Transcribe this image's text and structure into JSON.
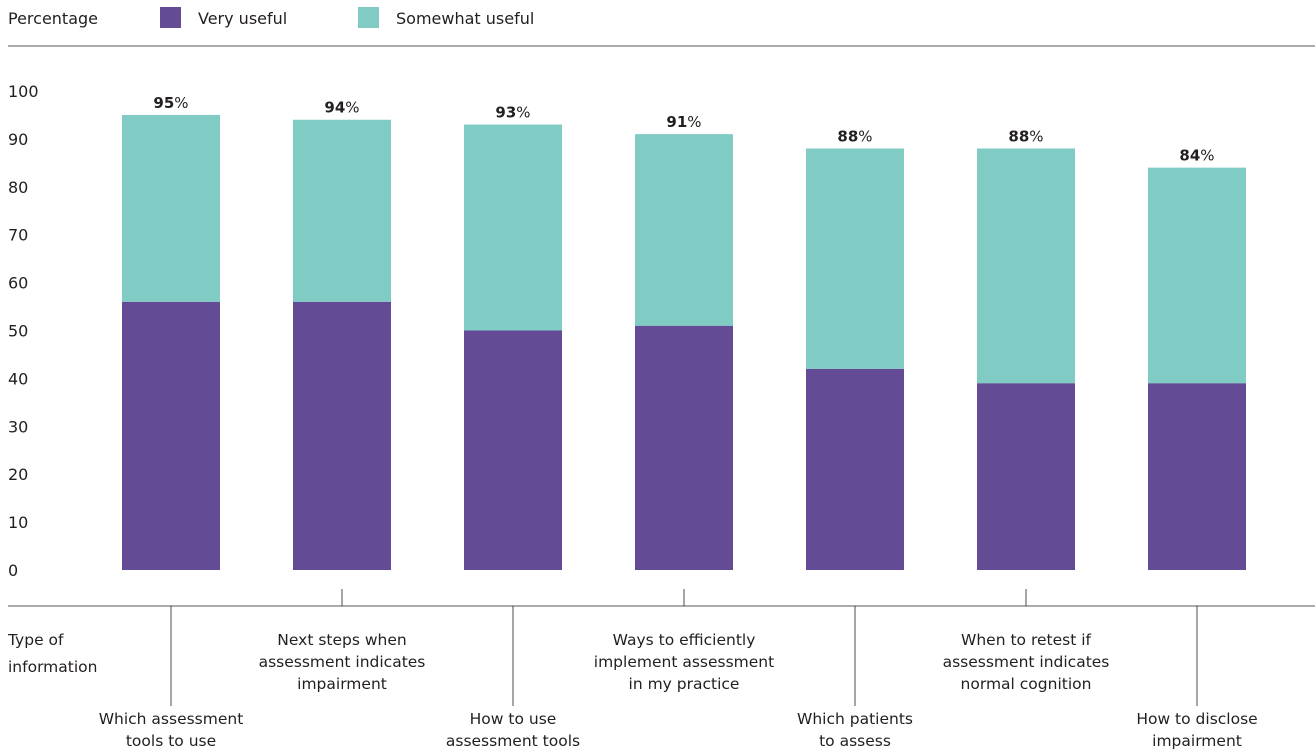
{
  "chart_data": {
    "type": "bar",
    "stacked": true,
    "ylabel": "Percentage",
    "xlabel": "Type of information",
    "ylim": [
      0,
      100
    ],
    "yticks": [
      0,
      10,
      20,
      30,
      40,
      50,
      60,
      70,
      80,
      90,
      100
    ],
    "grid": false,
    "legend_position": "top-left",
    "categories": [
      "Which assessment tools to use",
      "Next steps when assessment indicates impairment",
      "How to use assessment tools",
      "Ways to efficiently implement assessment in my practice",
      "Which patients to assess",
      "When to retest if assessment indicates normal cognition",
      "How to disclose impairment"
    ],
    "category_lines": [
      [
        "Which assessment",
        "tools to use"
      ],
      [
        "Next steps when",
        "assessment indicates",
        "impairment"
      ],
      [
        "How to use",
        "assessment tools"
      ],
      [
        "Ways to efficiently",
        "implement assessment",
        "in my practice"
      ],
      [
        "Which patients",
        "to assess"
      ],
      [
        "When to retest if",
        "assessment indicates",
        "normal cognition"
      ],
      [
        "How to disclose",
        "impairment"
      ]
    ],
    "series": [
      {
        "name": "Very useful",
        "color": "#634b95",
        "values": [
          56,
          56,
          50,
          51,
          42,
          39,
          39
        ]
      },
      {
        "name": "Somewhat useful",
        "color": "#80cbc4",
        "values": [
          39,
          38,
          43,
          40,
          46,
          49,
          45
        ]
      }
    ],
    "totals": [
      "95",
      "94",
      "93",
      "91",
      "88",
      "88",
      "84"
    ],
    "total_suffix": "%"
  }
}
